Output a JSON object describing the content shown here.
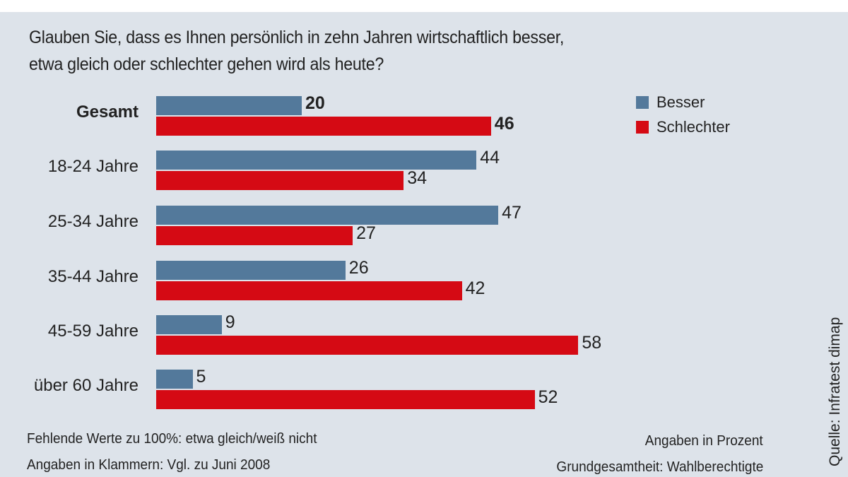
{
  "question": {
    "line1": "Glauben Sie, dass es Ihnen persönlich in zehn Jahren wirtschaftlich besser,",
    "line2": "etwa gleich oder schlechter gehen wird als heute?"
  },
  "colors": {
    "besser": "#53799b",
    "schlechter": "#d50a14",
    "background": "#dde3ea"
  },
  "chart_data": {
    "type": "bar",
    "orientation": "horizontal",
    "title": "Glauben Sie, dass es Ihnen persönlich in zehn Jahren wirtschaftlich besser, etwa gleich oder schlechter gehen wird als heute?",
    "categories": [
      "Gesamt",
      "18-24 Jahre",
      "25-34 Jahre",
      "35-44 Jahre",
      "45-59 Jahre",
      "über 60 Jahre"
    ],
    "series": [
      {
        "name": "Besser",
        "values": [
          20,
          44,
          47,
          26,
          9,
          5
        ]
      },
      {
        "name": "Schlechter",
        "values": [
          46,
          34,
          27,
          42,
          58,
          52
        ]
      }
    ],
    "xlim": [
      0,
      100
    ],
    "grid": false,
    "legend": "top-right",
    "unit": "Angaben in Prozent"
  },
  "notes": {
    "missing": "Fehlende Werte zu 100%: etwa gleich/weiß nicht",
    "brackets": "Angaben in Klammern: Vgl. zu Juni 2008",
    "unit": "Angaben in Prozent",
    "base": "Grundgesamtheit: Wahlberechtigte"
  },
  "source": "Quelle: Infratest dimap"
}
